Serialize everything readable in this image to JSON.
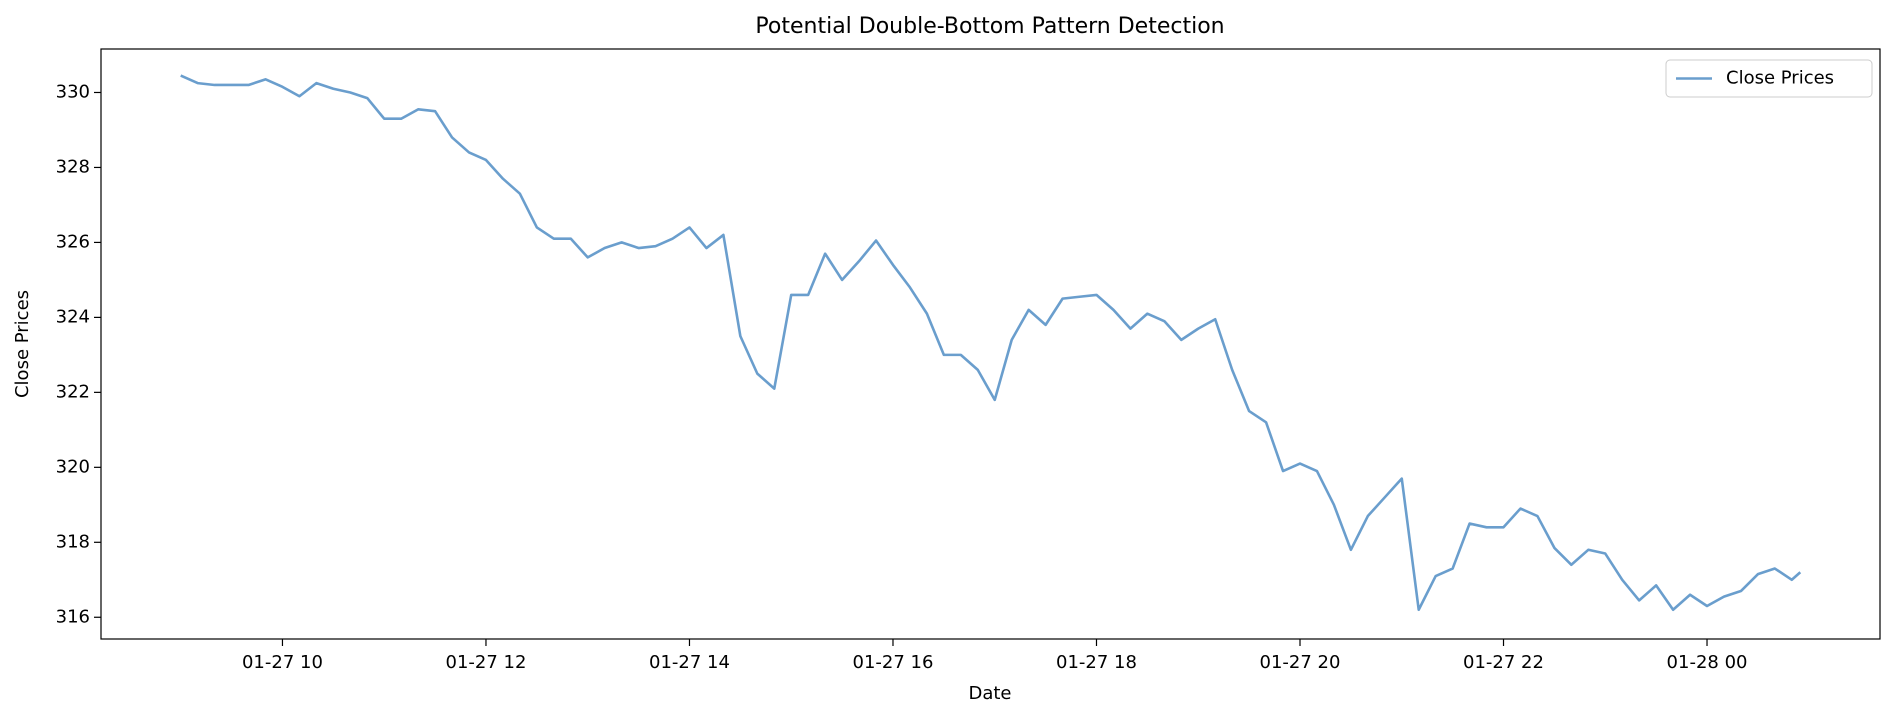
{
  "chart_data": {
    "type": "line",
    "title": "Potential Double-Bottom Pattern Detection",
    "xlabel": "Date",
    "ylabel": "Close Prices",
    "x": [
      "01-27 09:00",
      "01-27 09:10",
      "01-27 09:20",
      "01-27 09:30",
      "01-27 09:40",
      "01-27 09:50",
      "01-27 10:00",
      "01-27 10:10",
      "01-27 10:20",
      "01-27 10:30",
      "01-27 10:40",
      "01-27 10:50",
      "01-27 11:00",
      "01-27 11:10",
      "01-27 11:20",
      "01-27 11:30",
      "01-27 11:40",
      "01-27 11:50",
      "01-27 12:00",
      "01-27 12:10",
      "01-27 12:20",
      "01-27 12:30",
      "01-27 12:40",
      "01-27 12:50",
      "01-27 13:00",
      "01-27 13:10",
      "01-27 13:20",
      "01-27 13:30",
      "01-27 13:40",
      "01-27 13:50",
      "01-27 14:00",
      "01-27 14:10",
      "01-27 14:20",
      "01-27 14:30",
      "01-27 14:40",
      "01-27 14:50",
      "01-27 15:00",
      "01-27 15:10",
      "01-27 15:20",
      "01-27 15:30",
      "01-27 15:40",
      "01-27 15:50",
      "01-27 16:00",
      "01-27 16:10",
      "01-27 16:20",
      "01-27 16:30",
      "01-27 16:40",
      "01-27 16:50",
      "01-27 17:00",
      "01-27 17:10",
      "01-27 17:20",
      "01-27 17:30",
      "01-27 17:40",
      "01-27 17:50",
      "01-27 18:00",
      "01-27 18:10",
      "01-27 18:20",
      "01-27 18:30",
      "01-27 18:40",
      "01-27 18:50",
      "01-27 19:00",
      "01-27 19:10",
      "01-27 19:20",
      "01-27 19:30",
      "01-27 19:40",
      "01-27 19:50",
      "01-27 20:00",
      "01-27 20:10",
      "01-27 20:20",
      "01-27 20:30",
      "01-27 20:40",
      "01-27 20:50",
      "01-27 21:00",
      "01-27 21:10",
      "01-27 21:20",
      "01-27 21:30",
      "01-27 21:40",
      "01-27 21:50",
      "01-27 22:00",
      "01-27 22:10",
      "01-27 22:20",
      "01-27 22:30",
      "01-27 22:40",
      "01-27 22:50",
      "01-27 23:00",
      "01-27 23:10",
      "01-27 23:20",
      "01-27 23:30",
      "01-27 23:40",
      "01-27 23:50",
      "01-28 00:00",
      "01-28 00:10",
      "01-28 00:20",
      "01-28 00:30",
      "01-28 00:40",
      "01-28 00:50",
      "01-28 00:55"
    ],
    "series": [
      {
        "name": "Close Prices",
        "color": "#6a9ecd",
        "values": [
          330.45,
          330.25,
          330.2,
          330.2,
          330.2,
          330.35,
          330.15,
          329.9,
          330.25,
          330.1,
          330.0,
          329.85,
          329.3,
          329.3,
          329.55,
          329.5,
          328.8,
          328.4,
          328.2,
          327.7,
          327.3,
          326.4,
          326.1,
          326.1,
          325.6,
          325.85,
          326.0,
          325.85,
          325.9,
          326.1,
          326.4,
          325.85,
          326.2,
          323.5,
          322.5,
          322.1,
          324.6,
          324.6,
          325.7,
          325.0,
          325.5,
          326.05,
          325.4,
          324.8,
          324.1,
          323.0,
          323.0,
          322.6,
          321.8,
          323.4,
          324.2,
          323.8,
          324.5,
          324.55,
          324.6,
          324.2,
          323.7,
          324.1,
          323.9,
          323.4,
          323.7,
          323.95,
          322.6,
          321.5,
          321.2,
          319.9,
          320.1,
          319.9,
          319.0,
          317.8,
          318.7,
          319.2,
          319.7,
          316.2,
          317.1,
          317.3,
          318.5,
          318.4,
          318.4,
          318.9,
          318.7,
          317.85,
          317.4,
          317.8,
          317.7,
          317.0,
          316.45,
          316.85,
          316.2,
          316.6,
          316.3,
          316.55,
          316.7,
          317.15,
          317.3,
          317.0,
          317.2
        ]
      }
    ],
    "xlim": [
      "01-27 08:13",
      "01-28 01:42"
    ],
    "xticks": [
      {
        "value": "01-27 10:00",
        "label": "01-27 10"
      },
      {
        "value": "01-27 12:00",
        "label": "01-27 12"
      },
      {
        "value": "01-27 14:00",
        "label": "01-27 14"
      },
      {
        "value": "01-27 16:00",
        "label": "01-27 16"
      },
      {
        "value": "01-27 18:00",
        "label": "01-27 18"
      },
      {
        "value": "01-27 20:00",
        "label": "01-27 20"
      },
      {
        "value": "01-27 22:00",
        "label": "01-27 22"
      },
      {
        "value": "01-28 00:00",
        "label": "01-28 00"
      }
    ],
    "ylim": [
      315.42,
      331.16
    ],
    "yticks": [
      316,
      318,
      320,
      322,
      324,
      326,
      328,
      330
    ],
    "legend": "upper right"
  }
}
